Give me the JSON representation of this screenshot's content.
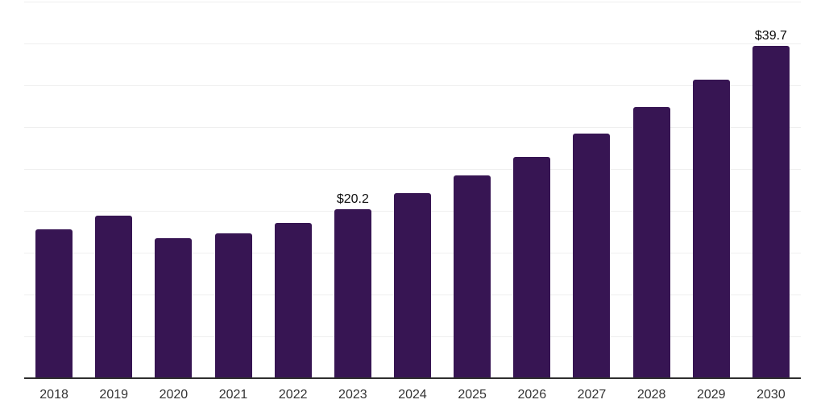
{
  "chart_data": {
    "type": "bar",
    "title": "",
    "xlabel": "",
    "ylabel": "",
    "categories": [
      "2018",
      "2019",
      "2020",
      "2021",
      "2022",
      "2023",
      "2024",
      "2025",
      "2026",
      "2027",
      "2028",
      "2029",
      "2030"
    ],
    "values": [
      17.8,
      19.4,
      16.7,
      17.3,
      18.6,
      20.2,
      22.1,
      24.2,
      26.4,
      29.2,
      32.4,
      35.7,
      39.7
    ],
    "data_labels": {
      "2023": "$20.2",
      "2030": "$39.7"
    },
    "ylim": [
      0,
      45
    ],
    "gridline_step": 5,
    "grid": true,
    "legend": false,
    "y_tick_labels_visible": false,
    "colors": {
      "bar": "#371553",
      "axis_line": "#2e2e2e",
      "gridline": "#efefef",
      "tick_label": "#333333",
      "data_label": "#0d0d0d",
      "background": "#ffffff"
    }
  }
}
